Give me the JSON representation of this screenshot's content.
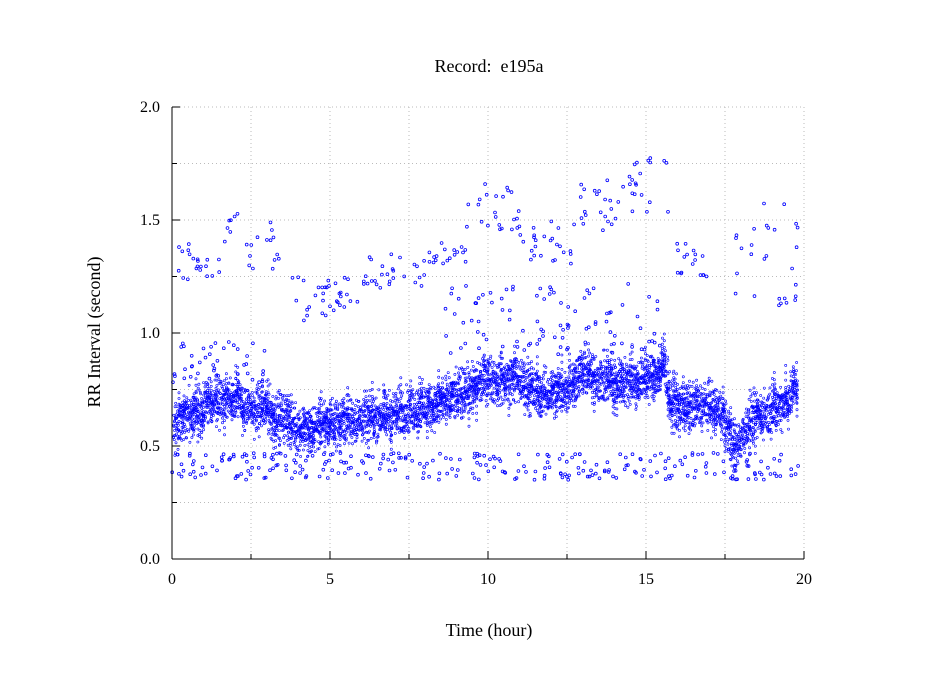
{
  "chart_data": {
    "type": "scatter",
    "title": "Record:  e195a",
    "xlabel": "Time (hour)",
    "ylabel": "RR Interval (second)",
    "xlim": [
      0,
      20
    ],
    "ylim": [
      0,
      2
    ],
    "x_ticks": [
      0,
      5,
      10,
      15,
      20
    ],
    "x_tick_labels": [
      "0",
      "5",
      "10",
      "15",
      "20"
    ],
    "y_ticks": [
      0,
      0.5,
      1,
      1.5,
      2
    ],
    "y_tick_labels": [
      "0.0",
      "0.5",
      "1.0",
      "1.5",
      "2.0"
    ],
    "grid": true,
    "grid_step_x": 2.5,
    "grid_step_y": 0.25,
    "series_color": "#0000ff",
    "series": [
      {
        "baseline_profile": {
          "x": [
            0,
            0.3,
            0.8,
            1.5,
            2.0,
            2.3,
            3.0,
            3.6,
            4.0,
            4.5,
            5.0,
            6.0,
            7.0,
            7.5,
            8.0,
            8.5,
            9.0,
            9.5,
            10.0,
            10.5,
            10.9,
            11.3,
            12.0,
            12.5,
            12.9,
            13.5,
            14.0,
            15.0,
            15.6,
            15.8,
            16.5,
            17.0,
            17.4,
            17.8,
            18.3,
            19.0,
            19.5,
            19.8
          ],
          "y": [
            0.58,
            0.62,
            0.66,
            0.7,
            0.72,
            0.66,
            0.66,
            0.62,
            0.58,
            0.58,
            0.6,
            0.62,
            0.64,
            0.66,
            0.67,
            0.69,
            0.72,
            0.76,
            0.8,
            0.79,
            0.8,
            0.74,
            0.73,
            0.75,
            0.83,
            0.8,
            0.78,
            0.79,
            0.85,
            0.69,
            0.67,
            0.68,
            0.65,
            0.48,
            0.62,
            0.66,
            0.7,
            0.78
          ]
        },
        "outlier_clusters": [
          {
            "x": [
              0.1,
              0.8
            ],
            "y": [
              1.15,
              1.45
            ]
          },
          {
            "x": [
              0.8,
              1.6
            ],
            "y": [
              1.25,
              1.35
            ]
          },
          {
            "x": [
              1.6,
              2.1
            ],
            "y": [
              1.4,
              1.54
            ]
          },
          {
            "x": [
              2.3,
              3.4
            ],
            "y": [
              1.25,
              1.5
            ]
          },
          {
            "x": [
              3.6,
              5.0
            ],
            "y": [
              1.05,
              1.25
            ]
          },
          {
            "x": [
              5.0,
              6.0
            ],
            "y": [
              1.1,
              1.25
            ]
          },
          {
            "x": [
              6.0,
              8.0
            ],
            "y": [
              1.2,
              1.35
            ]
          },
          {
            "x": [
              8.0,
              9.3
            ],
            "y": [
              1.3,
              1.4
            ]
          },
          {
            "x": [
              9.3,
              11.0
            ],
            "y": [
              1.45,
              1.67
            ]
          },
          {
            "x": [
              11.0,
              12.8
            ],
            "y": [
              1.3,
              1.5
            ]
          },
          {
            "x": [
              12.8,
              14.5
            ],
            "y": [
              1.45,
              1.7
            ]
          },
          {
            "x": [
              14.5,
              15.8
            ],
            "y": [
              1.5,
              1.78
            ]
          },
          {
            "x": [
              15.8,
              17.0
            ],
            "y": [
              1.25,
              1.4
            ]
          },
          {
            "x": [
              17.8,
              19.8
            ],
            "y": [
              1.1,
              1.63
            ]
          },
          {
            "x": [
              0.0,
              3.0
            ],
            "y": [
              0.78,
              0.97
            ]
          },
          {
            "x": [
              8.5,
              15.5
            ],
            "y": [
              0.9,
              1.22
            ]
          },
          {
            "x": [
              0.0,
              20.0
            ],
            "y": [
              0.35,
              0.47
            ]
          }
        ]
      }
    ]
  }
}
